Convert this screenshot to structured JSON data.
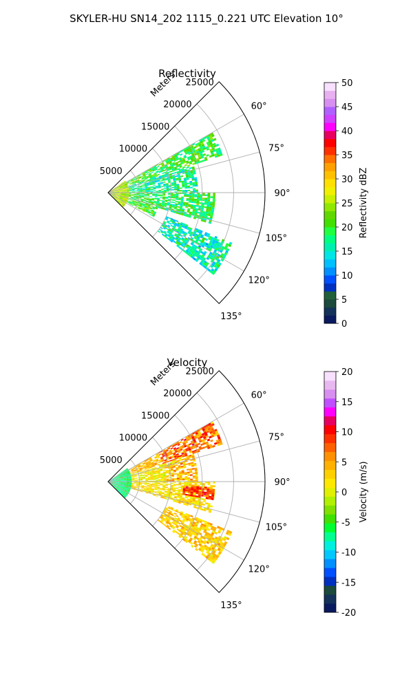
{
  "figure": {
    "title": "SKYLER-HU  SN14_202  1115_0.221 UTC Elevation 10°"
  },
  "chart_data": [
    {
      "type": "heatmap",
      "projection": "polar-sector",
      "title": "Reflectivity",
      "range_label": "Meters",
      "range_ticks": [
        5000,
        10000,
        15000,
        20000,
        25000
      ],
      "range_max": 25000,
      "theta_ticks": [
        "60°",
        "75°",
        "90°",
        "105°",
        "120°",
        "135°"
      ],
      "theta_values": [
        60,
        75,
        90,
        105,
        120,
        135
      ],
      "theta_range": [
        45,
        135
      ],
      "grid": true,
      "colorbar": {
        "label": "Reflectivity dBZ",
        "min": 0,
        "max": 50,
        "ticks": [
          0,
          5,
          10,
          15,
          20,
          25,
          30,
          35,
          40,
          45,
          50
        ]
      },
      "echo_regions": [
        {
          "theta": [
            60,
            72
          ],
          "range": [
            2000,
            19000
          ],
          "level": 20
        },
        {
          "theta": [
            72,
            90
          ],
          "range": [
            3000,
            14000
          ],
          "level": 17
        },
        {
          "theta": [
            90,
            107
          ],
          "range": [
            2000,
            17000
          ],
          "level": 19
        },
        {
          "theta": [
            107,
            118
          ],
          "range": [
            2000,
            8000
          ],
          "level": 21
        },
        {
          "theta": [
            112,
            128
          ],
          "range": [
            10000,
            21000
          ],
          "level": 16
        },
        {
          "theta": [
            55,
            135
          ],
          "range": [
            0,
            3000
          ],
          "level": 26
        }
      ]
    },
    {
      "type": "heatmap",
      "projection": "polar-sector",
      "title": "Velocity",
      "range_label": "Meters",
      "range_ticks": [
        5000,
        10000,
        15000,
        20000,
        25000
      ],
      "range_max": 25000,
      "theta_ticks": [
        "60°",
        "75°",
        "90°",
        "105°",
        "120°",
        "135°"
      ],
      "theta_values": [
        60,
        75,
        90,
        105,
        120,
        135
      ],
      "theta_range": [
        45,
        135
      ],
      "grid": true,
      "colorbar": {
        "label": "Velocity (m/s)",
        "min": -20,
        "max": 20,
        "ticks": [
          -20,
          -15,
          -10,
          -5,
          0,
          5,
          10,
          15,
          20
        ]
      },
      "echo_regions": [
        {
          "theta": [
            60,
            72
          ],
          "range": [
            2000,
            19000
          ],
          "level": 4
        },
        {
          "theta": [
            72,
            90
          ],
          "range": [
            3000,
            14000
          ],
          "level": 1
        },
        {
          "theta": [
            90,
            107
          ],
          "range": [
            2000,
            17000
          ],
          "level": 2
        },
        {
          "theta": [
            93,
            100
          ],
          "range": [
            12000,
            17000
          ],
          "level": 9
        },
        {
          "theta": [
            112,
            128
          ],
          "range": [
            10000,
            21000
          ],
          "level": 3
        },
        {
          "theta": [
            55,
            135
          ],
          "range": [
            0,
            3500
          ],
          "level": -7
        }
      ]
    }
  ]
}
